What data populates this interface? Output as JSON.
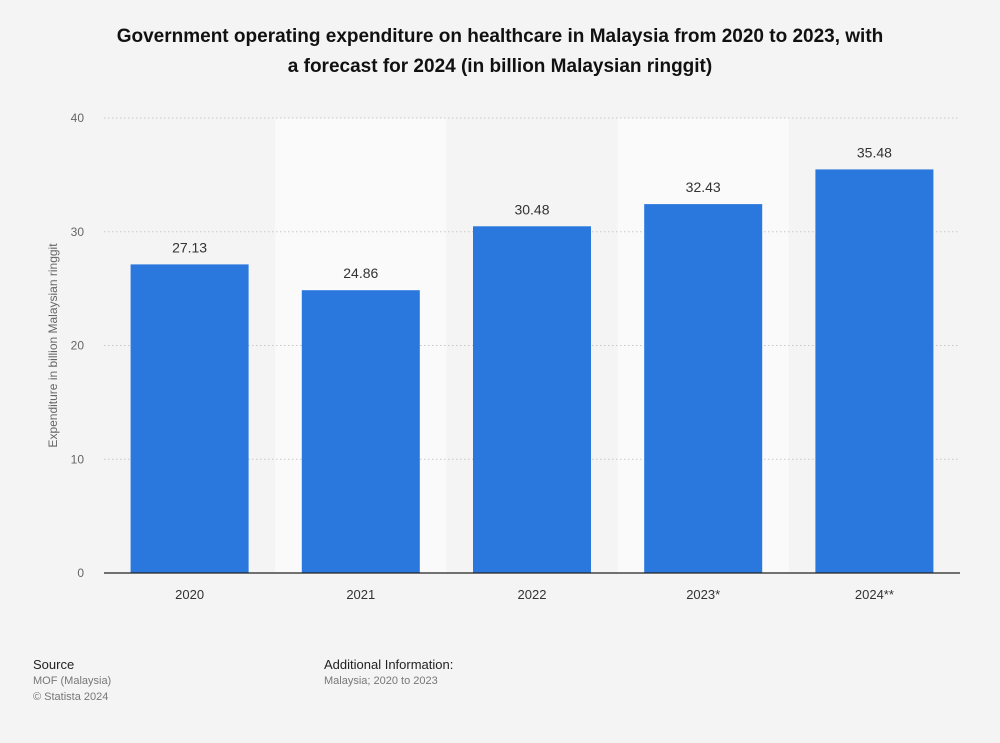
{
  "chart_data": {
    "type": "bar",
    "title_lines": [
      "Government operating expenditure on healthcare in Malaysia from 2020 to 2023, with",
      "a forecast for 2024 (in billion Malaysian ringgit)"
    ],
    "categories": [
      "2020",
      "2021",
      "2022",
      "2023*",
      "2024**"
    ],
    "values": [
      27.13,
      24.86,
      30.48,
      32.43,
      35.48
    ],
    "value_labels": [
      "27.13",
      "24.86",
      "30.48",
      "32.43",
      "35.48"
    ],
    "xlabel": "",
    "ylabel": "Expenditure in billion Malaysian ringgit",
    "ylim": [
      0,
      40
    ],
    "yticks": [
      0,
      10,
      20,
      30,
      40
    ],
    "ytick_labels": [
      "0",
      "10",
      "20",
      "30",
      "40"
    ],
    "grid": true,
    "bar_color": "#2a77de",
    "band_color": "#fafafa"
  },
  "footer": {
    "source_heading": "Source",
    "source_lines": [
      "MOF (Malaysia)",
      "© Statista 2024"
    ],
    "info_heading": "Additional Information:",
    "info_lines": [
      "Malaysia; 2020 to 2023"
    ]
  }
}
